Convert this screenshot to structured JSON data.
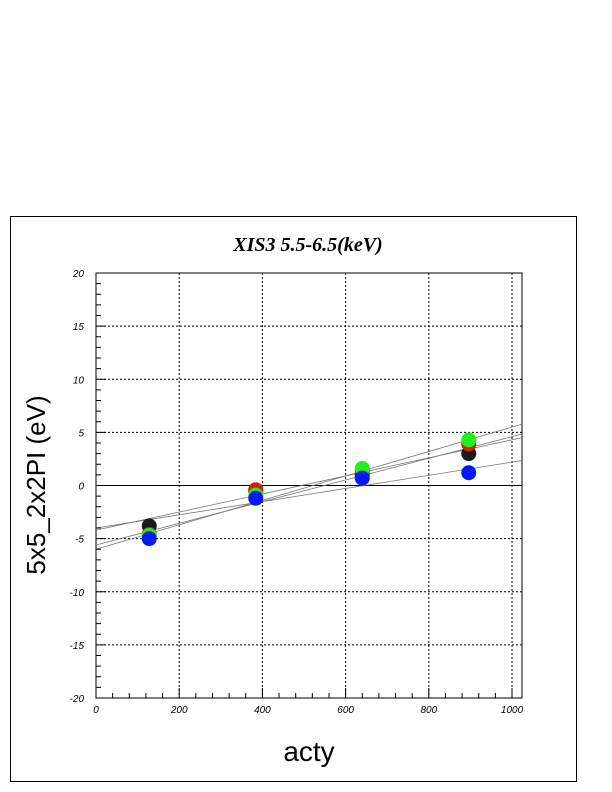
{
  "chart_data": {
    "type": "scatter",
    "title": "XIS3 5.5-6.5(keV)",
    "xlabel": "acty",
    "ylabel": "5x5_2x2PI (eV)",
    "xlim": [
      0,
      1024
    ],
    "ylim": [
      -20,
      20
    ],
    "xticks": [
      "0",
      "200",
      "400",
      "600",
      "800",
      "1000"
    ],
    "yticks": [
      "20",
      "15",
      "10",
      "5",
      "0",
      "-5",
      "-10",
      "-15",
      "-20"
    ],
    "grid": true,
    "series": [
      {
        "color": "#1a1a1a",
        "x": [
          128,
          384,
          640,
          896
        ],
        "y": [
          -3.8,
          -0.5,
          1.0,
          3.0
        ],
        "fit": [
          -4.2,
          0.0085
        ]
      },
      {
        "color": "#d22000",
        "x": [
          128,
          384,
          640,
          896
        ],
        "y": [
          -4.6,
          -0.4,
          1.4,
          3.9
        ],
        "fit": [
          -5.6,
          0.0102
        ]
      },
      {
        "color": "#22ee22",
        "x": [
          128,
          384,
          640,
          896
        ],
        "y": [
          -4.7,
          -0.9,
          1.6,
          4.3
        ],
        "fit": [
          -6.0,
          0.0115
        ]
      },
      {
        "color": "#0018ff",
        "x": [
          128,
          384,
          640,
          896
        ],
        "y": [
          -5.0,
          -1.2,
          0.7,
          1.2
        ],
        "fit": [
          -4.0,
          0.0062
        ]
      }
    ]
  }
}
